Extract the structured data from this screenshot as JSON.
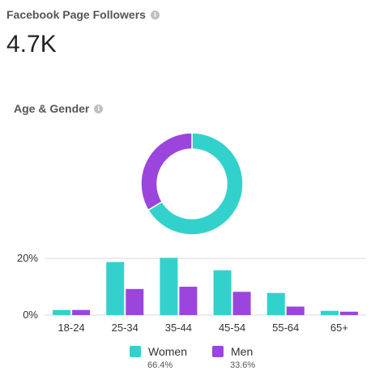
{
  "followers_card": {
    "title": "Facebook Page Followers",
    "value": "4.7K"
  },
  "age_gender": {
    "title": "Age & Gender"
  },
  "legend": [
    {
      "label": "Women",
      "pct": "66.4%"
    },
    {
      "label": "Men",
      "pct": "33.6%"
    }
  ],
  "colors": {
    "women": "#33d1cc",
    "men": "#9b45dd",
    "grid": "#d9d9d9",
    "info_icon": "#bfbfbf"
  },
  "icons": {
    "info": "info-icon"
  },
  "chart_data": [
    {
      "type": "pie",
      "donut": true,
      "categories": [
        "Women",
        "Men"
      ],
      "values": [
        66.4,
        33.6
      ]
    },
    {
      "type": "bar",
      "categories": [
        "18-24",
        "25-34",
        "35-44",
        "45-54",
        "55-64",
        "65+"
      ],
      "series": [
        {
          "name": "Women",
          "values": [
            1.8,
            18.7,
            20.2,
            15.8,
            7.8,
            1.5
          ]
        },
        {
          "name": "Men",
          "values": [
            1.8,
            9.2,
            10.0,
            8.2,
            3.0,
            1.2
          ]
        }
      ],
      "ylim": [
        0,
        20
      ],
      "yticks": [
        "0%",
        "20%"
      ],
      "grid": true
    }
  ]
}
